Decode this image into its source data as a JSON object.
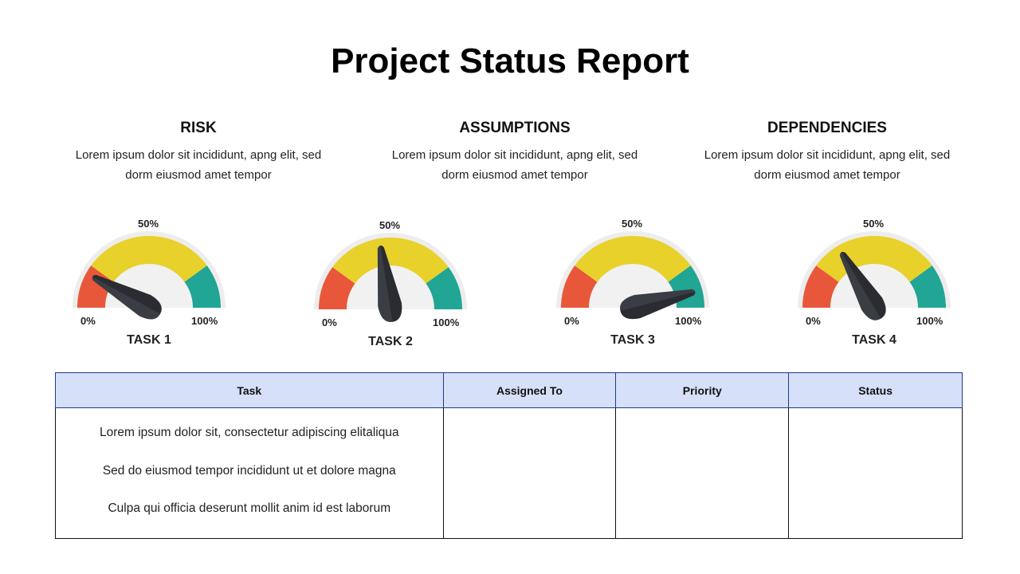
{
  "title": "Project Status Report",
  "sections": [
    {
      "heading": "RISK",
      "desc_line1": "Lorem ipsum dolor sit incididunt, apng elit, sed",
      "desc_line2": "dorm eiusmod amet tempor"
    },
    {
      "heading": "ASSUMPTIONS",
      "desc_line1": "Lorem ipsum dolor sit incididunt, apng elit, sed",
      "desc_line2": "dorm eiusmod amet tempor"
    },
    {
      "heading": "DEPENDENCIES",
      "desc_line1": "Lorem ipsum dolor sit incididunt, apng elit, sed",
      "desc_line2": "dorm eiusmod amet tempor"
    }
  ],
  "gauges": [
    {
      "task": "TASK 1",
      "min_label": "0%",
      "mid_label": "50%",
      "max_label": "100%",
      "value_percent": 16
    },
    {
      "task": "TASK 2",
      "min_label": "0%",
      "mid_label": "50%",
      "max_label": "100%",
      "value_percent": 45
    },
    {
      "task": "TASK 3",
      "min_label": "0%",
      "mid_label": "50%",
      "max_label": "100%",
      "value_percent": 92
    },
    {
      "task": "TASK 4",
      "min_label": "0%",
      "mid_label": "50%",
      "max_label": "100%",
      "value_percent": 33
    }
  ],
  "colors": {
    "low": "#e9573a",
    "mid": "#e8d12a",
    "high": "#21a594",
    "needle": "#3a3d43",
    "header_bg": "#d6e0f8"
  },
  "table": {
    "headers": [
      "Task",
      "Assigned To",
      "Priority",
      "Status"
    ],
    "tasks": [
      "Lorem ipsum dolor sit, consectetur adipiscing elitaliqua",
      "Sed do eiusmod tempor incididunt ut et dolore magna",
      "Culpa qui officia deserunt mollit anim id est laborum"
    ]
  }
}
